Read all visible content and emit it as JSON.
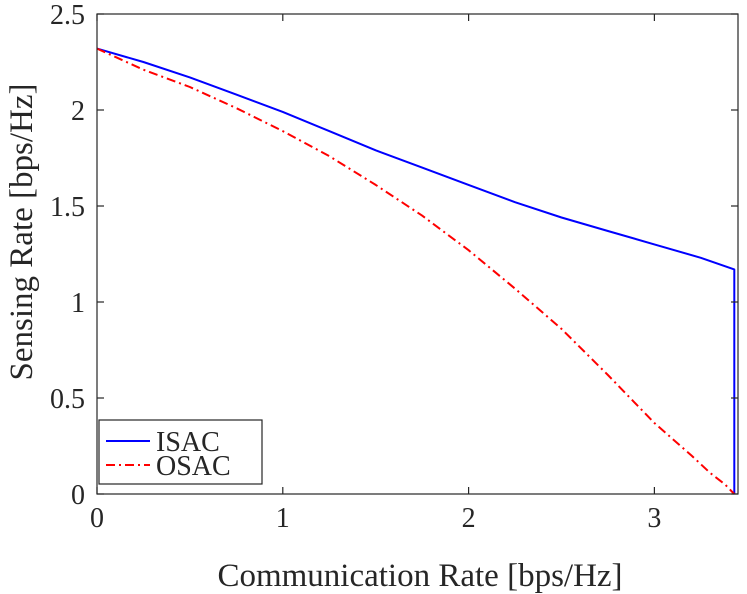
{
  "chart_data": {
    "type": "line",
    "title": "",
    "xlabel": "Communication Rate [bps/Hz]",
    "ylabel": "Sensing Rate [bps/Hz]",
    "xlim": [
      0,
      3.45
    ],
    "ylim": [
      0,
      2.5
    ],
    "xticks": [
      0,
      1,
      2,
      3
    ],
    "xtick_labels": [
      "0",
      "1",
      "2",
      "3"
    ],
    "yticks": [
      0,
      0.5,
      1,
      1.5,
      2,
      2.5
    ],
    "ytick_labels": [
      "0",
      "0.5",
      "1",
      "1.5",
      "2",
      "2.5"
    ],
    "grid": false,
    "legend_position": "bottom-left",
    "series": [
      {
        "name": "ISAC",
        "color": "#0000ff",
        "line_style": "solid",
        "x": [
          0,
          0.25,
          0.5,
          0.75,
          1.0,
          1.25,
          1.5,
          1.75,
          2.0,
          2.25,
          2.5,
          2.75,
          3.0,
          3.25,
          3.43,
          3.43
        ],
        "y": [
          2.32,
          2.25,
          2.17,
          2.08,
          1.99,
          1.89,
          1.79,
          1.7,
          1.61,
          1.52,
          1.44,
          1.37,
          1.3,
          1.23,
          1.17,
          0
        ]
      },
      {
        "name": "OSAC",
        "color": "#ff0000",
        "line_style": "dashdot",
        "x": [
          0,
          0.25,
          0.5,
          0.75,
          1.0,
          1.25,
          1.5,
          1.75,
          2.0,
          2.25,
          2.5,
          2.75,
          3.0,
          3.2,
          3.3,
          3.38,
          3.43
        ],
        "y": [
          2.32,
          2.21,
          2.12,
          2.01,
          1.89,
          1.76,
          1.61,
          1.45,
          1.27,
          1.07,
          0.86,
          0.62,
          0.37,
          0.2,
          0.11,
          0.05,
          0
        ]
      }
    ]
  }
}
